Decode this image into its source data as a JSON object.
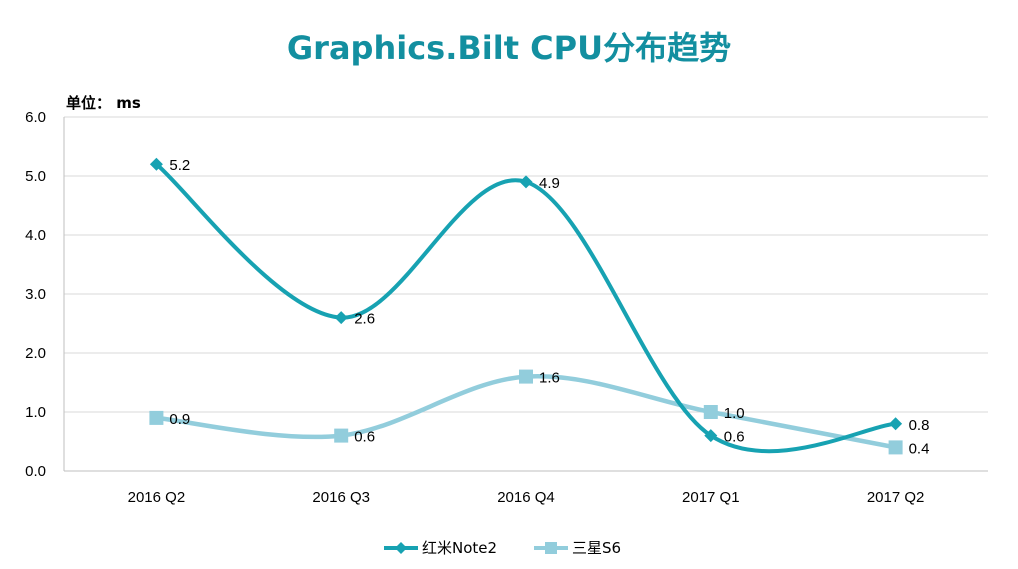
{
  "chart_data": {
    "type": "line",
    "title": "Graphics.Bilt CPU分布趋势",
    "unit_label": "单位： ms",
    "xlabel": "",
    "ylabel": "ms",
    "categories": [
      "2016 Q2",
      "2016 Q3",
      "2016 Q4",
      "2017 Q1",
      "2017 Q2"
    ],
    "ylim": [
      0,
      6
    ],
    "yticks": [
      "0.0",
      "1.0",
      "2.0",
      "3.0",
      "4.0",
      "5.0",
      "6.0"
    ],
    "grid": true,
    "smooth": true,
    "legend_position": "bottom-center",
    "series": [
      {
        "name": "红米Note2",
        "values": [
          5.2,
          2.6,
          4.9,
          0.6,
          0.8
        ],
        "labels": [
          "5.2",
          "2.6",
          "4.9",
          "0.6",
          "0.8"
        ],
        "color": "#17a2b2",
        "marker": "diamond"
      },
      {
        "name": "三星S6",
        "values": [
          0.9,
          0.6,
          1.6,
          1.0,
          0.4
        ],
        "labels": [
          "0.9",
          "0.6",
          "1.6",
          "1.0",
          "0.4"
        ],
        "color": "#92cddc",
        "marker": "square"
      }
    ]
  }
}
